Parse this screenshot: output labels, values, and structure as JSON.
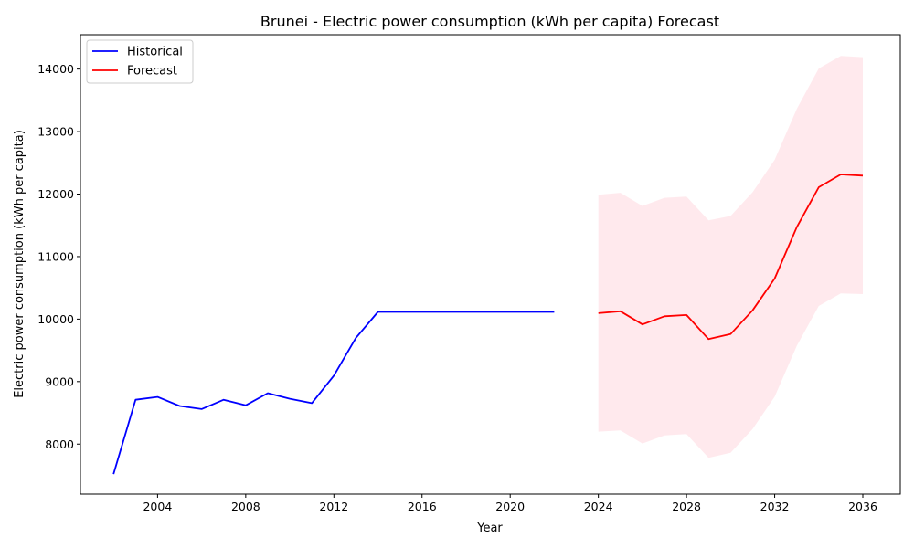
{
  "chart_data": {
    "type": "line",
    "title": "Brunei - Electric power consumption (kWh per capita) Forecast",
    "xlabel": "Year",
    "ylabel": "Electric power consumption (kWh per capita)",
    "xlim": [
      2000.5,
      2037.7
    ],
    "ylim": [
      7200,
      14550
    ],
    "xticks": [
      2004,
      2008,
      2012,
      2016,
      2020,
      2024,
      2028,
      2032,
      2036
    ],
    "yticks": [
      8000,
      9000,
      10000,
      11000,
      12000,
      13000,
      14000
    ],
    "grid": false,
    "legend_position": "top-left",
    "series": [
      {
        "name": "Historical",
        "color": "#0000ff",
        "x": [
          2002,
          2003,
          2004,
          2005,
          2006,
          2007,
          2008,
          2009,
          2010,
          2011,
          2012,
          2013,
          2014,
          2015,
          2016,
          2017,
          2018,
          2019,
          2020,
          2021,
          2022
        ],
        "y": [
          7520,
          8710,
          8755,
          8610,
          8560,
          8710,
          8620,
          8815,
          8725,
          8655,
          9095,
          9700,
          10115,
          10115,
          10115,
          10115,
          10115,
          10115,
          10115,
          10115,
          10115
        ]
      },
      {
        "name": "Forecast",
        "color": "#ff0000",
        "x": [
          2024,
          2025,
          2026,
          2027,
          2028,
          2029,
          2030,
          2031,
          2032,
          2033,
          2034,
          2035,
          2036
        ],
        "y": [
          10095,
          10125,
          9915,
          10045,
          10065,
          9680,
          9760,
          10140,
          10650,
          11470,
          12110,
          12315,
          12295
        ]
      }
    ],
    "confidence_band": {
      "color": "#ffc0cb",
      "x": [
        2024,
        2025,
        2026,
        2027,
        2028,
        2029,
        2030,
        2031,
        2032,
        2033,
        2034,
        2035,
        2036
      ],
      "lower": [
        8200,
        8220,
        8010,
        8140,
        8160,
        7780,
        7860,
        8240,
        8760,
        9570,
        10210,
        10410,
        10400
      ],
      "upper": [
        11990,
        12020,
        11810,
        11940,
        11960,
        11580,
        11650,
        12030,
        12550,
        13360,
        14010,
        14210,
        14190
      ]
    }
  }
}
